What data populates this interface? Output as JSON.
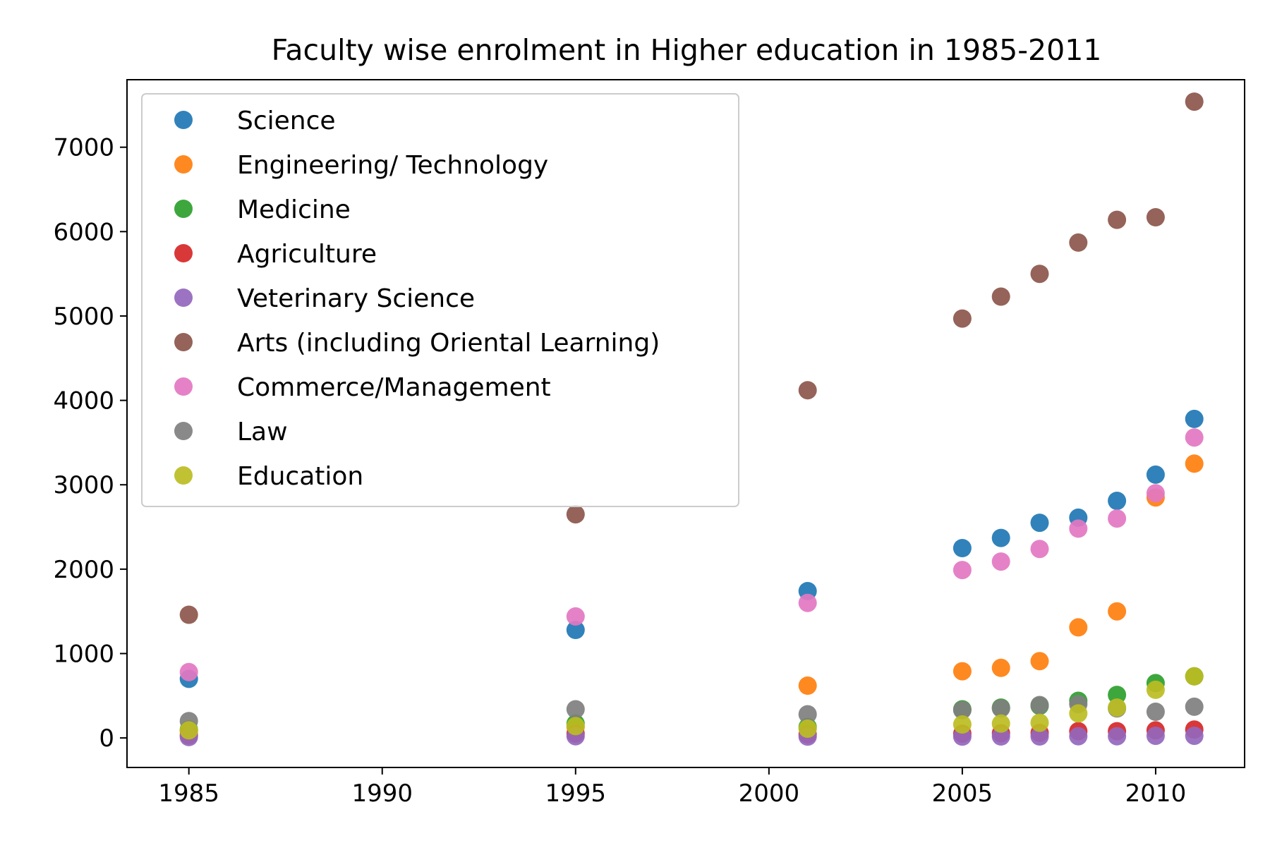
{
  "chart_data": {
    "type": "scatter",
    "title": "Faculty wise enrolment in Higher education in 1985-2011",
    "xlabel": "",
    "ylabel": "",
    "x": [
      1985,
      1995,
      2001,
      2005,
      2006,
      2007,
      2008,
      2009,
      2010,
      2011
    ],
    "xlim": [
      1983.4,
      2012.3
    ],
    "ylim": [
      -350,
      7800
    ],
    "xticks": [
      1985,
      1990,
      1995,
      2000,
      2005,
      2010
    ],
    "yticks": [
      0,
      1000,
      2000,
      3000,
      4000,
      5000,
      6000,
      7000
    ],
    "grid": false,
    "legend_position": "upper-left",
    "series": [
      {
        "name": "Science",
        "color": "#1f77b4",
        "values": [
          700,
          1280,
          1740,
          2250,
          2370,
          2550,
          2610,
          2810,
          3120,
          3780
        ]
      },
      {
        "name": "Engineering/ Technology",
        "color": "#ff7f0e",
        "values": [
          80,
          130,
          620,
          790,
          830,
          910,
          1310,
          1500,
          2850,
          3250
        ]
      },
      {
        "name": "Medicine",
        "color": "#2ca02c",
        "values": [
          100,
          170,
          130,
          340,
          360,
          380,
          440,
          510,
          650,
          730
        ]
      },
      {
        "name": "Agriculture",
        "color": "#d62728",
        "values": [
          30,
          50,
          40,
          50,
          55,
          60,
          80,
          80,
          90,
          100
        ]
      },
      {
        "name": "Veterinary Science",
        "color": "#9467bd",
        "values": [
          10,
          20,
          15,
          15,
          18,
          18,
          20,
          20,
          25,
          25
        ]
      },
      {
        "name": "Arts (including Oriental Learning)",
        "color": "#8c564b",
        "values": [
          1460,
          2650,
          4120,
          4970,
          5230,
          5500,
          5870,
          6140,
          6170,
          7540
        ]
      },
      {
        "name": "Commerce/Management",
        "color": "#e377c2",
        "values": [
          780,
          1440,
          1600,
          1990,
          2090,
          2240,
          2480,
          2600,
          2900,
          3560
        ]
      },
      {
        "name": "Law",
        "color": "#7f7f7f",
        "values": [
          200,
          340,
          280,
          330,
          350,
          390,
          400,
          350,
          310,
          370
        ]
      },
      {
        "name": "Education",
        "color": "#bcbd22",
        "values": [
          90,
          140,
          110,
          160,
          170,
          180,
          290,
          360,
          570,
          730
        ]
      }
    ]
  }
}
